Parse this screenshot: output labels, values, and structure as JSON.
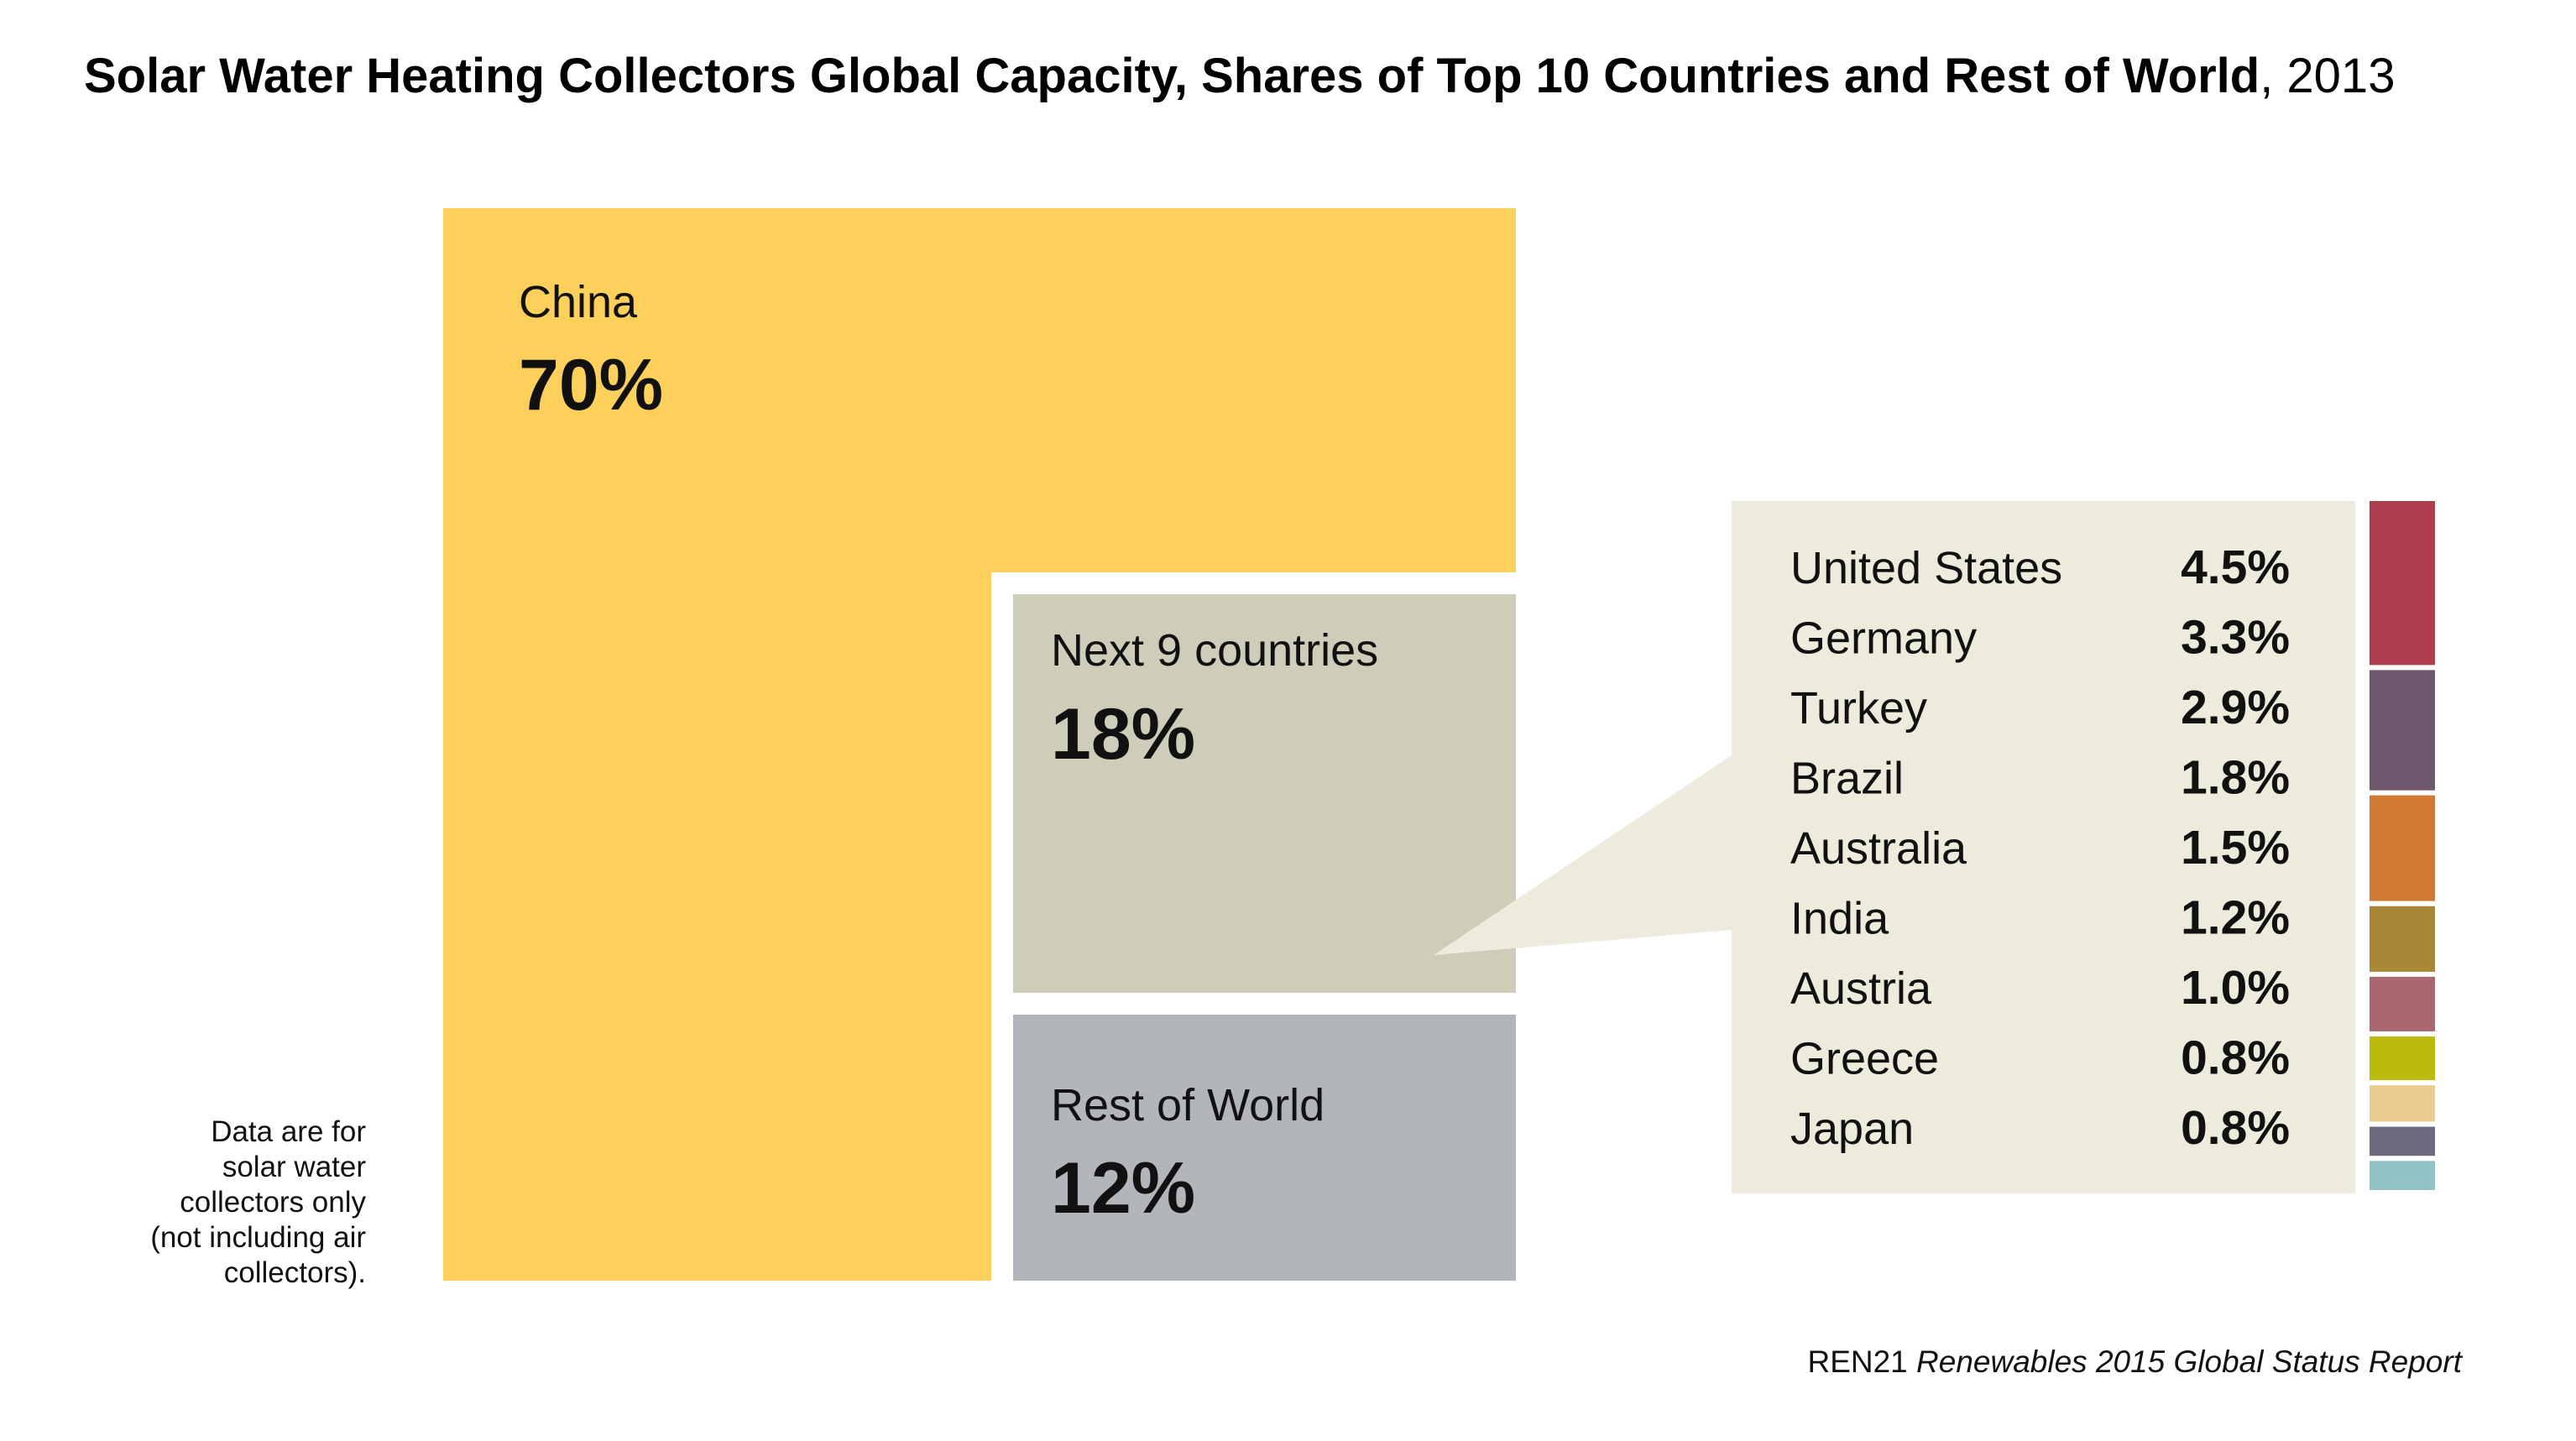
{
  "title": {
    "main": "Solar Water Heating Collectors Global Capacity, Shares of Top 10 Countries and Rest of World",
    "year": "2013"
  },
  "chart_data": {
    "type": "treemap",
    "blocks": [
      {
        "name": "China",
        "value_label": "70%",
        "value": 70,
        "color": "#fdd05c"
      },
      {
        "name": "Next 9 countries",
        "value_label": "18%",
        "value": 18,
        "color": "#cecdba"
      },
      {
        "name": "Rest of World",
        "value_label": "12%",
        "value": 12,
        "color": "#b2b5b9"
      }
    ],
    "breakdown": {
      "panel_color": "#ecebdc",
      "items": [
        {
          "name": "United States",
          "value_label": "4.5%",
          "value": 4.5,
          "color": "#ae3d4d"
        },
        {
          "name": "Germany",
          "value_label": "3.3%",
          "value": 3.3,
          "color": "#6e586d"
        },
        {
          "name": "Turkey",
          "value_label": "2.9%",
          "value": 2.9,
          "color": "#d17a35"
        },
        {
          "name": "Brazil",
          "value_label": "1.8%",
          "value": 1.8,
          "color": "#a88837"
        },
        {
          "name": "Australia",
          "value_label": "1.5%",
          "value": 1.5,
          "color": "#a96870"
        },
        {
          "name": "India",
          "value_label": "1.2%",
          "value": 1.2,
          "color": "#bbbb0b"
        },
        {
          "name": "Austria",
          "value_label": "1.0%",
          "value": 1.0,
          "color": "#e9cc92"
        },
        {
          "name": "Greece",
          "value_label": "0.8%",
          "value": 0.8,
          "color": "#6d6b80"
        },
        {
          "name": "Japan",
          "value_label": "0.8%",
          "value": 0.8,
          "color": "#93c3c6"
        }
      ]
    }
  },
  "note": [
    "Data are for",
    "solar water",
    "collectors only",
    "(not including air",
    "collectors)."
  ],
  "source": {
    "org": "REN21",
    "report": "Renewables 2015 Global Status Report"
  }
}
